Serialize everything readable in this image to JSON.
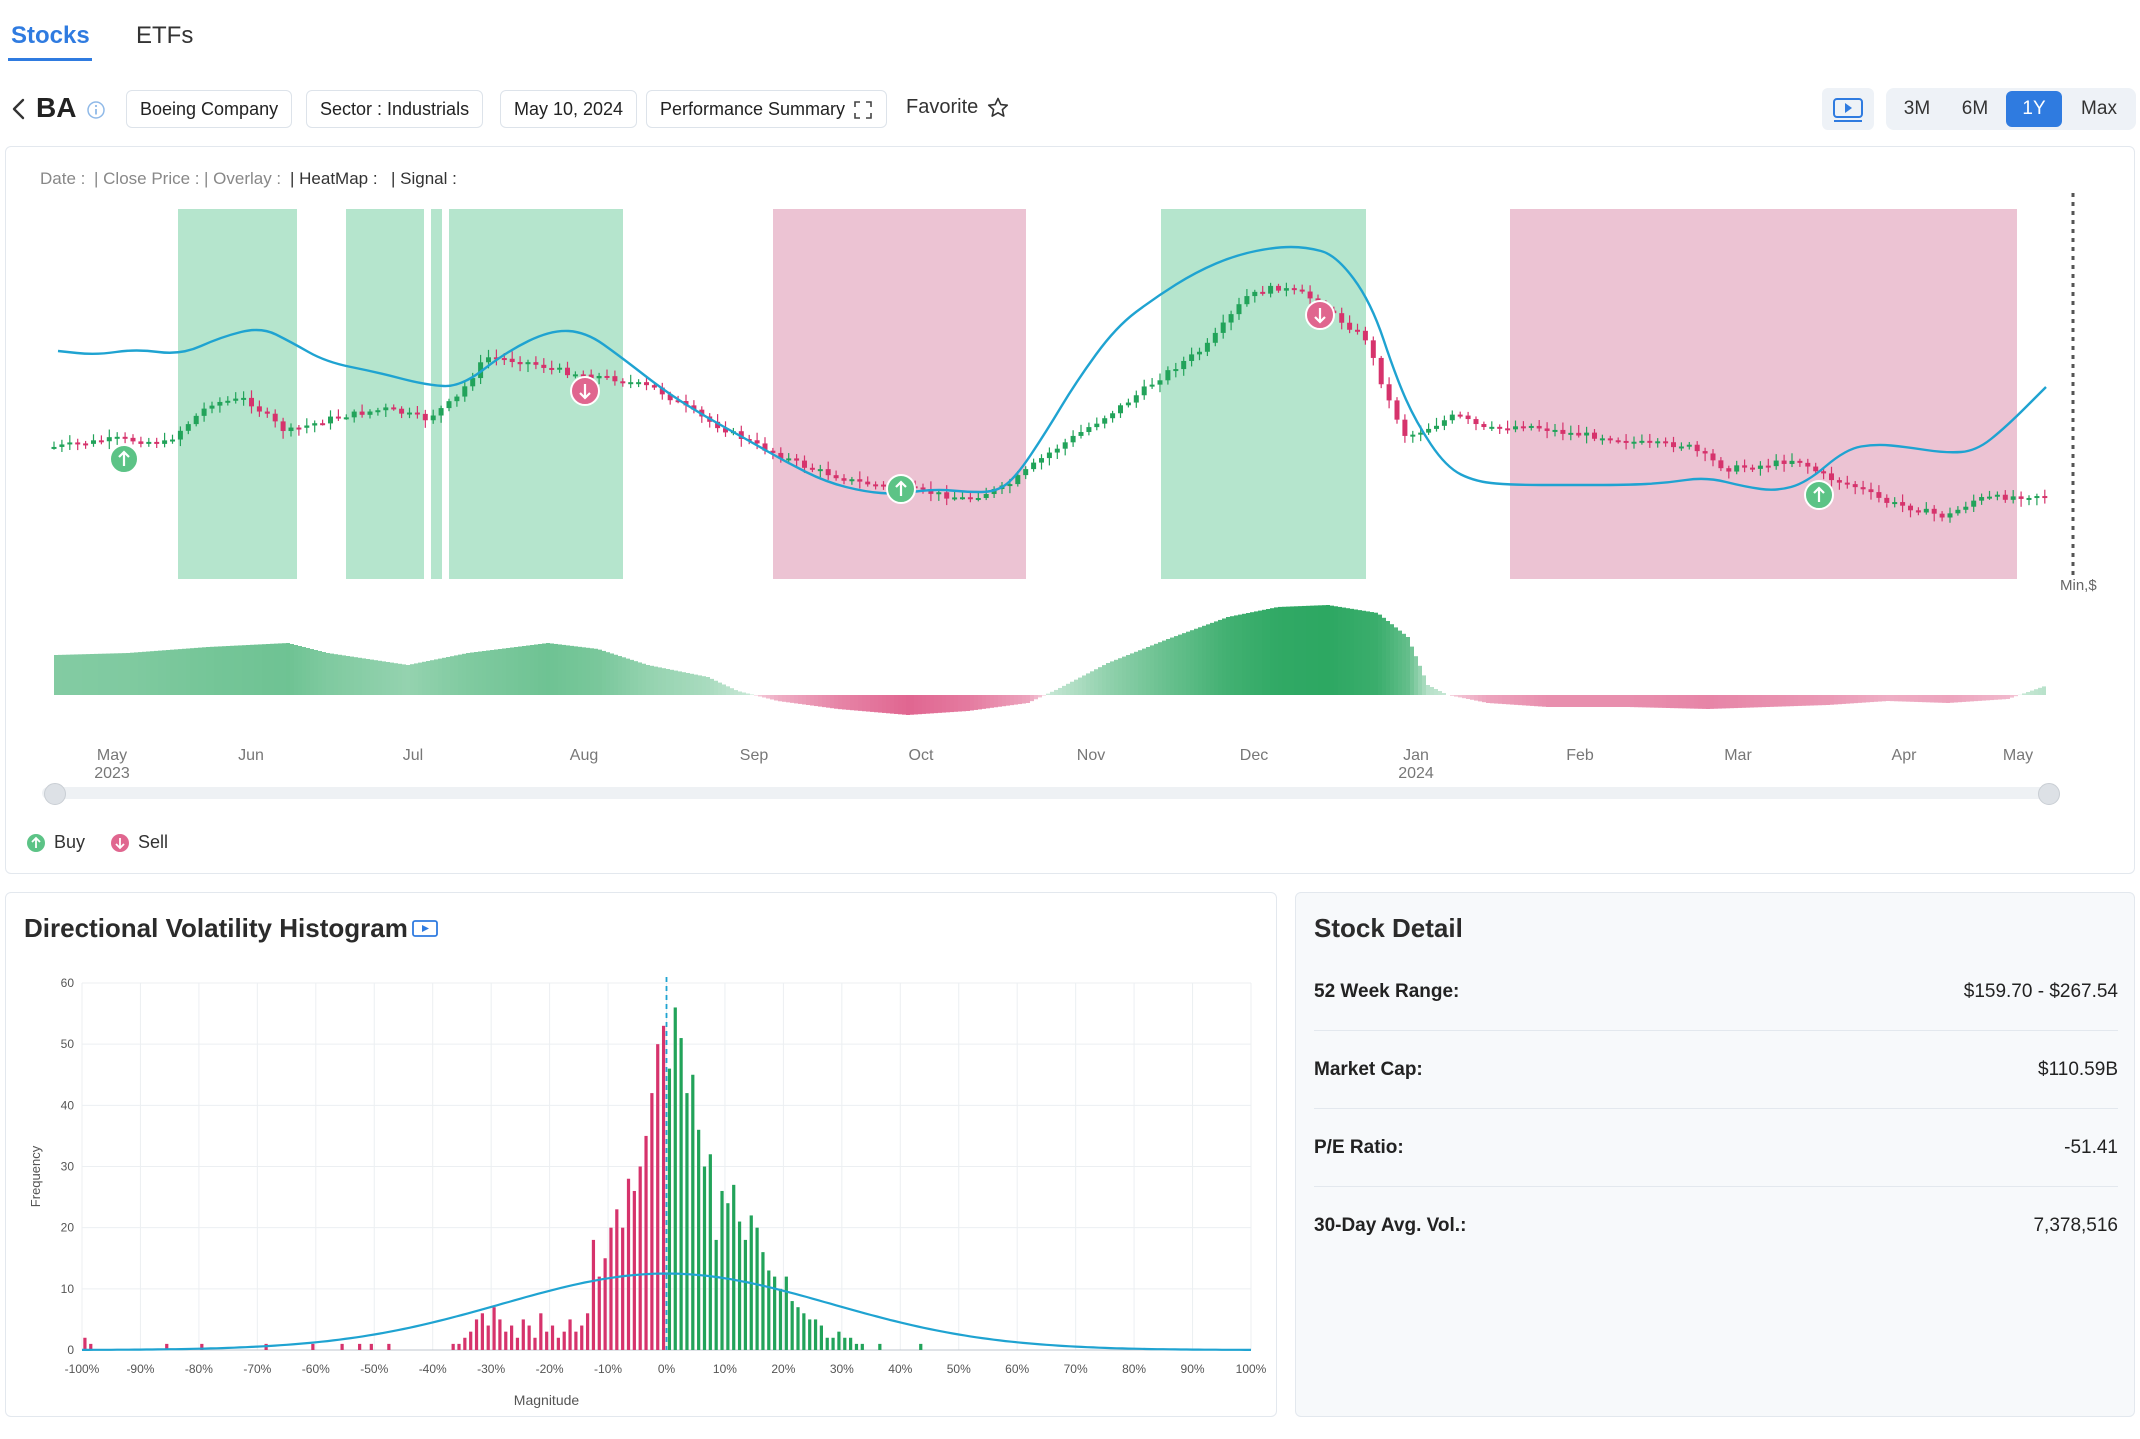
{
  "tabs": [
    {
      "label": "Stocks",
      "active": true
    },
    {
      "label": "ETFs",
      "active": false
    }
  ],
  "toolbar": {
    "ticker": "BA",
    "company": "Boeing Company",
    "sector": "Sector : Industrials",
    "date": "May 10, 2024",
    "view": "Performance Summary",
    "favorite_label": "Favorite",
    "ranges": [
      "3M",
      "6M",
      "1Y",
      "Max"
    ],
    "active_range": "1Y"
  },
  "price_chart": {
    "legend": {
      "date": "Date :",
      "close": "| Close Price :",
      "overlay": "| Overlay :",
      "heatmap": "| HeatMap :",
      "signal": "| Signal :"
    },
    "y_unit_label": "Min,$",
    "x_labels": [
      "May 2023",
      "Jun",
      "Jul",
      "Aug",
      "Sep",
      "Oct",
      "Nov",
      "Dec",
      "Jan 2024",
      "Feb",
      "Mar",
      "Apr",
      "May"
    ],
    "signals": [
      {
        "type": "buy",
        "date": "2023-05-19"
      },
      {
        "type": "sell",
        "date": "2023-08-01"
      },
      {
        "type": "buy",
        "date": "2023-10-06"
      },
      {
        "type": "sell",
        "date": "2023-12-14"
      },
      {
        "type": "buy",
        "date": "2024-03-18"
      }
    ],
    "buy_label": "Buy",
    "sell_label": "Sell",
    "colors": {
      "up": "#22a35a",
      "down": "#d6336c",
      "overlay": "#1fa3d1",
      "buy_zone": "#b5e5cd",
      "sell_zone": "#ecc3d3"
    }
  },
  "histogram": {
    "title": "Directional Volatility Histogram",
    "ylabel": "Frequency",
    "xlabel": "Magnitude",
    "y_ticks": [
      "0",
      "10",
      "20",
      "30",
      "40",
      "50",
      "60"
    ],
    "x_ticks": [
      "-100%",
      "-90%",
      "-80%",
      "-70%",
      "-60%",
      "-50%",
      "-40%",
      "-30%",
      "-20%",
      "-10%",
      "0%",
      "10%",
      "20%",
      "30%",
      "40%",
      "50%",
      "60%",
      "70%",
      "80%",
      "90%",
      "100%"
    ]
  },
  "chart_data": {
    "type": "bar",
    "title": "Directional Volatility Histogram",
    "xlabel": "Magnitude",
    "ylabel": "Frequency",
    "ylim": [
      0,
      60
    ],
    "xlim": [
      -100,
      100
    ],
    "bin_width_pct": 1,
    "negative_color": "#d6336c",
    "positive_color": "#22a35a",
    "curve_color": "#1fa3d1",
    "bins": [
      [
        -100,
        2
      ],
      [
        -99,
        1
      ],
      [
        -86,
        1
      ],
      [
        -80,
        1
      ],
      [
        -69,
        1
      ],
      [
        -61,
        1
      ],
      [
        -56,
        1
      ],
      [
        -53,
        1
      ],
      [
        -51,
        1
      ],
      [
        -48,
        1
      ],
      [
        -37,
        1
      ],
      [
        -36,
        1
      ],
      [
        -35,
        2
      ],
      [
        -34,
        3
      ],
      [
        -33,
        5
      ],
      [
        -32,
        6
      ],
      [
        -31,
        4
      ],
      [
        -30,
        7
      ],
      [
        -29,
        5
      ],
      [
        -28,
        3
      ],
      [
        -27,
        4
      ],
      [
        -26,
        2
      ],
      [
        -25,
        5
      ],
      [
        -24,
        4
      ],
      [
        -23,
        2
      ],
      [
        -22,
        6
      ],
      [
        -21,
        3
      ],
      [
        -20,
        4
      ],
      [
        -19,
        2
      ],
      [
        -18,
        3
      ],
      [
        -17,
        5
      ],
      [
        -16,
        3
      ],
      [
        -15,
        4
      ],
      [
        -14,
        6
      ],
      [
        -13,
        18
      ],
      [
        -12,
        12
      ],
      [
        -11,
        15
      ],
      [
        -10,
        20
      ],
      [
        -9,
        23
      ],
      [
        -8,
        20
      ],
      [
        -7,
        28
      ],
      [
        -6,
        26
      ],
      [
        -5,
        30
      ],
      [
        -4,
        35
      ],
      [
        -3,
        42
      ],
      [
        -2,
        50
      ],
      [
        -1,
        53
      ],
      [
        0,
        46
      ],
      [
        1,
        56
      ],
      [
        2,
        51
      ],
      [
        3,
        42
      ],
      [
        4,
        45
      ],
      [
        5,
        36
      ],
      [
        6,
        30
      ],
      [
        7,
        32
      ],
      [
        8,
        18
      ],
      [
        9,
        26
      ],
      [
        10,
        24
      ],
      [
        11,
        27
      ],
      [
        12,
        21
      ],
      [
        13,
        18
      ],
      [
        14,
        22
      ],
      [
        15,
        20
      ],
      [
        16,
        16
      ],
      [
        17,
        13
      ],
      [
        18,
        12
      ],
      [
        19,
        10
      ],
      [
        20,
        12
      ],
      [
        21,
        8
      ],
      [
        22,
        7
      ],
      [
        23,
        6
      ],
      [
        24,
        5
      ],
      [
        25,
        5
      ],
      [
        26,
        4
      ],
      [
        27,
        2
      ],
      [
        28,
        2
      ],
      [
        29,
        3
      ],
      [
        30,
        2
      ],
      [
        31,
        2
      ],
      [
        32,
        1
      ],
      [
        33,
        1
      ],
      [
        36,
        1
      ],
      [
        43,
        1
      ]
    ],
    "normal_curve": {
      "mean_pct": 0,
      "sd_pct": 28,
      "peak": 12.5
    }
  },
  "stock_detail": {
    "title": "Stock Detail",
    "rows": [
      {
        "label": "52 Week Range:",
        "value": "$159.70 - $267.54"
      },
      {
        "label": "Market Cap:",
        "value": "$110.59B"
      },
      {
        "label": "P/E Ratio:",
        "value": "-51.41"
      },
      {
        "label": "30-Day Avg. Vol.:",
        "value": "7,378,516"
      }
    ]
  }
}
